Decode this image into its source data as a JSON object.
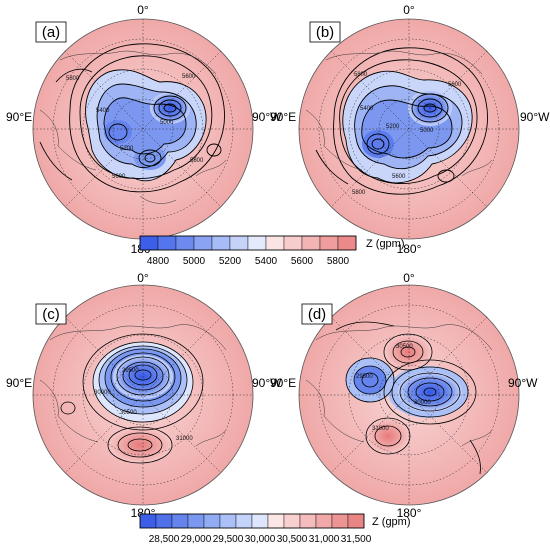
{
  "panels": [
    {
      "label": "(a)",
      "top": "0°",
      "left": "90°E",
      "right": "90°W",
      "bottom": "180°",
      "contour_labels": [
        "5800",
        "5600",
        "5400",
        "5200",
        "5000",
        "5600",
        "5800"
      ]
    },
    {
      "label": "(b)",
      "top": "0°",
      "left": "90°E",
      "right": "90°W",
      "bottom": "180°",
      "contour_labels": [
        "5800",
        "5600",
        "5400",
        "5200",
        "5000",
        "5600",
        "5800"
      ]
    },
    {
      "label": "(c)",
      "top": "0°",
      "left": "90°E",
      "right": "90°W",
      "bottom": "180°",
      "contour_labels": [
        "29500",
        "30000",
        "30500",
        "31000"
      ]
    },
    {
      "label": "(d)",
      "top": "0°",
      "left": "90°E",
      "right": "90°W",
      "bottom": "180°",
      "contour_labels": [
        "30500",
        "31000",
        "30000",
        "29500"
      ]
    }
  ],
  "colorbar_top": {
    "ticks": [
      "4800",
      "5000",
      "5200",
      "5400",
      "5600",
      "5800"
    ],
    "unit": "Z (gpm)",
    "colors": [
      "#3d5fe8",
      "#5575ec",
      "#6d8bef",
      "#8aa3f3",
      "#a7bbf6",
      "#c6d3f9",
      "#e4eafc",
      "#fbe4e4",
      "#f7cccc",
      "#f3b4b4",
      "#ef9d9d",
      "#ec8a8a"
    ]
  },
  "colorbar_bottom": {
    "ticks": [
      "28,500",
      "29,000",
      "29,500",
      "30,000",
      "30,500",
      "31,000",
      "31,500"
    ],
    "unit": "Z (gpm)",
    "colors": [
      "#3d5fe8",
      "#5171eb",
      "#6584ee",
      "#7b98f1",
      "#92acf4",
      "#aac0f7",
      "#c3d3fa",
      "#dde6fc",
      "#fde6e6",
      "#f8d0d0",
      "#f4bcbc",
      "#f0a8a8",
      "#ed9595",
      "#ea8585"
    ]
  }
}
